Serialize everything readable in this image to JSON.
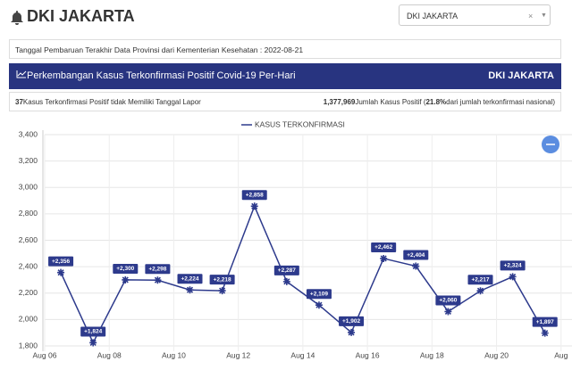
{
  "header": {
    "title": "DKI JAKARTA"
  },
  "dropdown": {
    "selected": "DKI JAKARTA",
    "clear": "×"
  },
  "update_info": "Tanggal Pembaruan Terakhir Data Provinsi dari Kementerian Kesehatan : 2022-08-21",
  "banner": {
    "title": "Perkembangan Kasus Terkonfirmasi Positif Covid-19 Per-Hari",
    "region": "DKI JAKARTA"
  },
  "stats": {
    "undated_count": "37",
    "undated_text": "Kasus Terkonfirmasi Positif tidak Memiliki Tanggal Lapor",
    "total": "1,377,969",
    "total_text": "Jumlah Kasus Positif (",
    "share": "21.8%",
    "share_text": "dari jumlah terkonfirmasi nasional)"
  },
  "chart_data": {
    "type": "line",
    "x": [
      6.5,
      7.5,
      8.5,
      9.5,
      10.5,
      11.5,
      12.5,
      13.5,
      14.5,
      15.5,
      16.5,
      17.5,
      18.5,
      19.5,
      20.5,
      21.5
    ],
    "series": [
      {
        "name": "KASUS TERKONFIRMASI",
        "color": "#2d3a8c",
        "values": [
          2356,
          1824,
          2300,
          2298,
          2224,
          2218,
          2858,
          2287,
          2109,
          1902,
          2462,
          2404,
          2060,
          2217,
          2324,
          1897
        ],
        "value_labels": [
          "+2,356",
          "+1,824",
          "+2,300",
          "+2,298",
          "+2,224",
          "+2,218",
          "+2,858",
          "+2,287",
          "+2,109",
          "+1,902",
          "+2,462",
          "+2,404",
          "+2,060",
          "+2,217",
          "+2,324",
          "+1,897"
        ]
      }
    ],
    "xlim": [
      6,
      22.2
    ],
    "xticks": [
      {
        "value": 6,
        "label": "Aug 06"
      },
      {
        "value": 8,
        "label": "Aug 08"
      },
      {
        "value": 10,
        "label": "Aug 10"
      },
      {
        "value": 12,
        "label": "Aug 12"
      },
      {
        "value": 14,
        "label": "Aug 14"
      },
      {
        "value": 16,
        "label": "Aug 16"
      },
      {
        "value": 18,
        "label": "Aug 18"
      },
      {
        "value": 20,
        "label": "Aug 20"
      },
      {
        "value": 22,
        "label": "Aug"
      }
    ],
    "ylim": [
      1800,
      3400
    ],
    "yticks": [
      {
        "value": 1800,
        "label": "1,800"
      },
      {
        "value": 2000,
        "label": "2,000"
      },
      {
        "value": 2200,
        "label": "2,200"
      },
      {
        "value": 2400,
        "label": "2,400"
      },
      {
        "value": 2600,
        "label": "2,600"
      },
      {
        "value": 2800,
        "label": "2,800"
      },
      {
        "value": 3000,
        "label": "3,000"
      },
      {
        "value": 3200,
        "label": "3,200"
      },
      {
        "value": 3400,
        "label": "3,400"
      }
    ],
    "grid": true
  }
}
